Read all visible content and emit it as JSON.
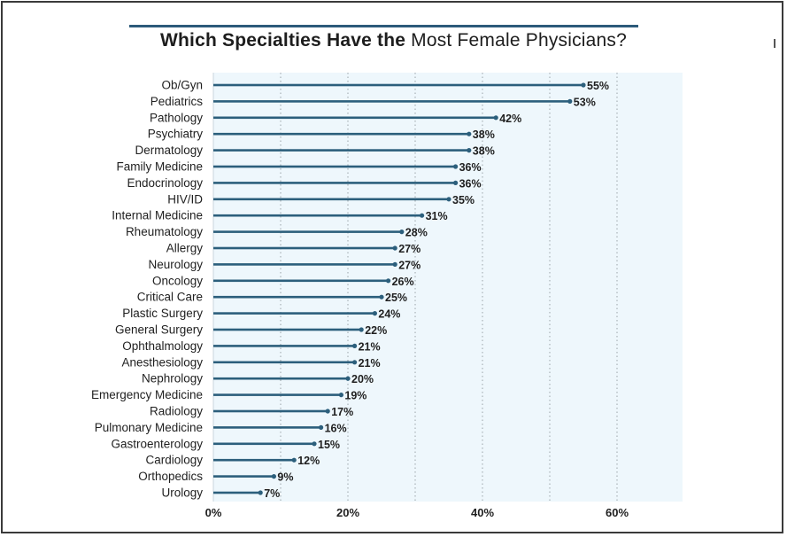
{
  "title": {
    "bold_part": "Which Specialties Have the",
    "light_part": "Most Female Physicians?"
  },
  "colors": {
    "bar": "#2c5f7c",
    "plot_bg": "#eef7fc",
    "grid": "#9aa3a8",
    "title_rule": "#2c5a7a"
  },
  "chart_data": {
    "type": "bar",
    "orientation": "horizontal",
    "title": "Which Specialties Have the Most Female Physicians?",
    "xlabel": "",
    "ylabel": "",
    "xlim": [
      0,
      70
    ],
    "x_ticks": [
      0,
      20,
      40,
      60
    ],
    "x_tick_labels": [
      "0%",
      "20%",
      "40%",
      "60%"
    ],
    "grid": "vertical dotted every 10%",
    "categories": [
      "Ob/Gyn",
      "Pediatrics",
      "Pathology",
      "Psychiatry",
      "Dermatology",
      "Family Medicine",
      "Endocrinology",
      "HIV/ID",
      "Internal Medicine",
      "Rheumatology",
      "Allergy",
      "Neurology",
      "Oncology",
      "Critical Care",
      "Plastic Surgery",
      "General Surgery",
      "Ophthalmology",
      "Anesthesiology",
      "Nephrology",
      "Emergency Medicine",
      "Radiology",
      "Pulmonary Medicine",
      "Gastroenterology",
      "Cardiology",
      "Orthopedics",
      "Urology"
    ],
    "values": [
      55,
      53,
      42,
      38,
      38,
      36,
      36,
      35,
      31,
      28,
      27,
      27,
      26,
      25,
      24,
      22,
      21,
      21,
      20,
      19,
      17,
      16,
      15,
      12,
      9,
      7
    ],
    "value_labels": [
      "55%",
      "53%",
      "42%",
      "38%",
      "38%",
      "36%",
      "36%",
      "35%",
      "31%",
      "28%",
      "27%",
      "27%",
      "26%",
      "25%",
      "24%",
      "22%",
      "21%",
      "21%",
      "20%",
      "19%",
      "17%",
      "16%",
      "15%",
      "12%",
      "9%",
      "7%"
    ]
  }
}
